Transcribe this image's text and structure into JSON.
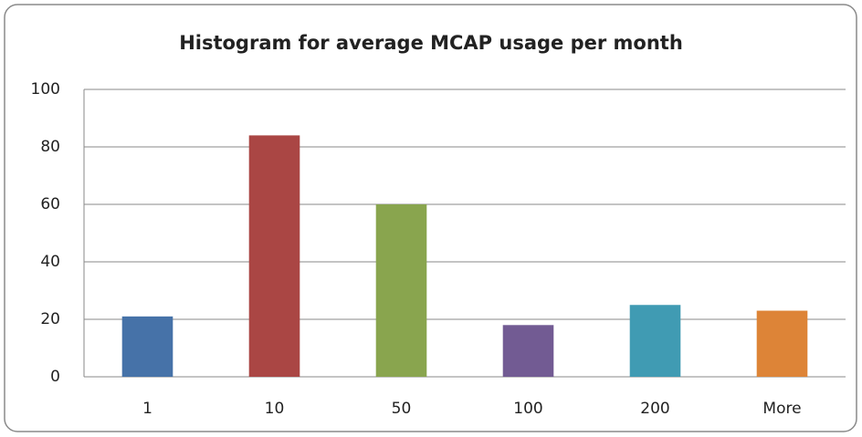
{
  "chart_data": {
    "type": "bar",
    "title": "Histogram for average MCAP usage per month",
    "categories": [
      "1",
      "10",
      "50",
      "100",
      "200",
      "More"
    ],
    "values": [
      21,
      84,
      60,
      18,
      25,
      23
    ],
    "colors": [
      "#4672a8",
      "#aa4644",
      "#89a54e",
      "#725b93",
      "#409bb3",
      "#dd8437"
    ],
    "ylim": [
      0,
      100
    ],
    "yticks": [
      0,
      20,
      40,
      60,
      80,
      100
    ],
    "grid": true
  }
}
